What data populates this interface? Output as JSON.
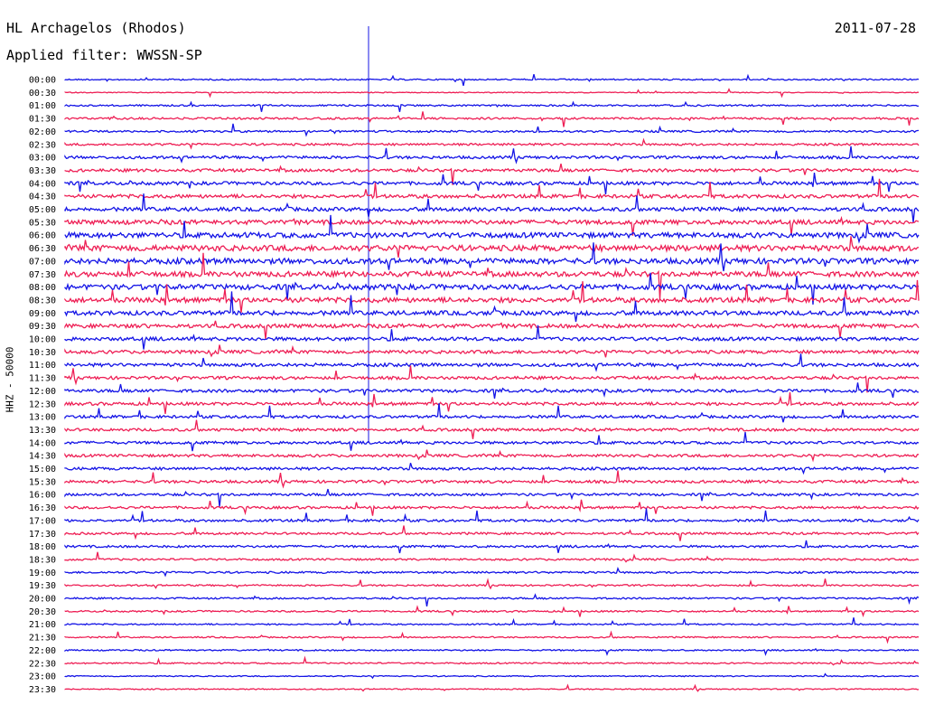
{
  "header": {
    "station": "HL Archagelos (Rhodos)",
    "filter": "Applied filter: WWSSN-SP",
    "date": "2011-07-28"
  },
  "chart_data": {
    "type": "line",
    "title": "HL Archagelos (Rhodos)",
    "subtitle": "Applied filter: WWSSN-SP",
    "date": "2011-07-28",
    "ylabel": "HHZ - 50000",
    "xlabel": "",
    "row_interval_minutes": 30,
    "categories": [
      "00:00",
      "00:30",
      "01:00",
      "01:30",
      "02:00",
      "02:30",
      "03:00",
      "03:30",
      "04:00",
      "04:30",
      "05:00",
      "05:30",
      "06:00",
      "06:30",
      "07:00",
      "07:30",
      "08:00",
      "08:30",
      "09:00",
      "09:30",
      "10:00",
      "10:30",
      "11:00",
      "11:30",
      "12:00",
      "12:30",
      "13:00",
      "13:30",
      "14:00",
      "14:30",
      "15:00",
      "15:30",
      "16:00",
      "16:30",
      "17:00",
      "17:30",
      "18:00",
      "18:30",
      "19:00",
      "19:30",
      "20:00",
      "20:30",
      "21:00",
      "21:30",
      "22:00",
      "22:30",
      "23:00",
      "23:30"
    ],
    "series_colors": [
      "#1414e6",
      "#ee1f55"
    ],
    "noise_level": [
      0.5,
      0.3,
      0.6,
      0.7,
      0.7,
      0.8,
      1.0,
      1.1,
      1.2,
      1.3,
      1.4,
      1.6,
      1.9,
      2.1,
      2.0,
      1.9,
      1.9,
      1.8,
      1.6,
      1.4,
      1.3,
      1.2,
      1.2,
      1.1,
      1.1,
      1.1,
      1.0,
      1.0,
      1.0,
      1.0,
      1.0,
      1.0,
      0.9,
      0.9,
      0.9,
      0.8,
      0.8,
      0.7,
      0.7,
      0.6,
      0.6,
      0.6,
      0.5,
      0.5,
      0.5,
      0.5,
      0.4,
      0.4
    ],
    "grid": false
  }
}
